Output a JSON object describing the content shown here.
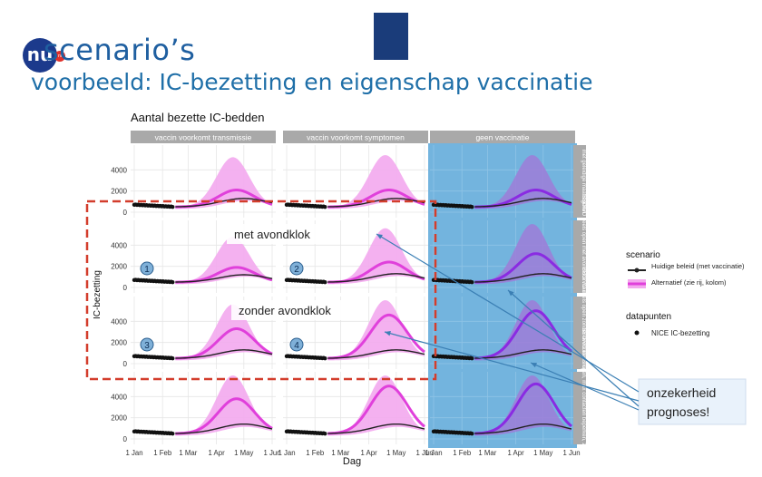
{
  "slide": {
    "title": "scenario’s",
    "subtitle": "voorbeeld: IC-bezetting en eigenschap vaccinatie",
    "logo_text": "nu",
    "logo_badge": "nl"
  },
  "chart_data": {
    "type": "line",
    "title": "Aantal bezette IC-bedden",
    "xlabel": "Dag",
    "ylabel": "IC-bezetting",
    "x_ticks": [
      "1 Jan",
      "1 Feb",
      "1 Mar",
      "1 Apr",
      "1 May",
      "1 Jun"
    ],
    "y_ticks": [
      0,
      2000,
      4000
    ],
    "ylim": [
      0,
      6000
    ],
    "col_facets": [
      "vaccin voorkomt transmissie",
      "vaccin voorkomt symptomen",
      "geen vaccinatie"
    ],
    "row_facets": [
      "met geleidige maatregelen",
      "BSO/VO deels open met avondklok max 1 persoon",
      "BSO/VO deels open zonder avondklok max 1 persoon",
      "BSO/VO deels open, max contacten beperken, zonder av.klok 1 p."
    ],
    "legend": {
      "title": "scenario",
      "entries": [
        "Huidige beleid (met vaccinatie)",
        "Alternatief (zie rij, kolom)"
      ],
      "datapoints_title": "datapunten",
      "datapoints_entry": "NICE IC-bezetting",
      "placement": "right"
    },
    "series_notes": {
      "nice_data": "NICE IC-bezetting, observed from 1 Jan to ~10 Feb around 700 falling to 500",
      "peak_month": "late April"
    },
    "panels": [
      {
        "row": 0,
        "col": 0,
        "black_peak": 1300,
        "pink_peak": 2100,
        "band_hi": 5200
      },
      {
        "row": 0,
        "col": 1,
        "black_peak": 1300,
        "pink_peak": 2100,
        "band_hi": 5400
      },
      {
        "row": 0,
        "col": 2,
        "black_peak": 1300,
        "pink_peak": 2100,
        "band_hi": 5400
      },
      {
        "row": 1,
        "col": 0,
        "black_peak": 1200,
        "pink_peak": 1900,
        "band_hi": 4800
      },
      {
        "row": 1,
        "col": 1,
        "black_peak": 1300,
        "pink_peak": 2400,
        "band_hi": 5600
      },
      {
        "row": 1,
        "col": 2,
        "black_peak": 1300,
        "pink_peak": 3200,
        "band_hi": 6000
      },
      {
        "row": 2,
        "col": 0,
        "black_peak": 1300,
        "pink_peak": 3300,
        "band_hi": 5600
      },
      {
        "row": 2,
        "col": 1,
        "black_peak": 1300,
        "pink_peak": 4600,
        "band_hi": 6000
      },
      {
        "row": 2,
        "col": 2,
        "black_peak": 1300,
        "pink_peak": 5000,
        "band_hi": 6000
      },
      {
        "row": 3,
        "col": 0,
        "black_peak": 1400,
        "pink_peak": 3800,
        "band_hi": 6000
      },
      {
        "row": 3,
        "col": 1,
        "black_peak": 1400,
        "pink_peak": 5000,
        "band_hi": 6000
      },
      {
        "row": 3,
        "col": 2,
        "black_peak": 1400,
        "pink_peak": 5200,
        "band_hi": 6000
      }
    ],
    "annotations": [
      {
        "text": "met avondklok",
        "panel": "row 1, col 0-1"
      },
      {
        "text": "zonder avondklok",
        "panel": "row 2, col 0-1"
      },
      {
        "text": "onzekerheid prognoses!",
        "panel": "right side, arrows into bands"
      }
    ],
    "markers": [
      "1",
      "2",
      "3",
      "4"
    ]
  },
  "colors": {
    "pink_band": "#f3a8ee",
    "pink_line": "#e040db",
    "purple_band": "#9b7fd8",
    "purple_line": "#8a2be2",
    "blue_highlight": "#5aa7d8",
    "red_dash": "#d33d2c",
    "strip": "#a9a9a9",
    "arrow": "#3b7fb4",
    "panel_bg": "#ffffff",
    "grid": "#e6e6e6"
  }
}
